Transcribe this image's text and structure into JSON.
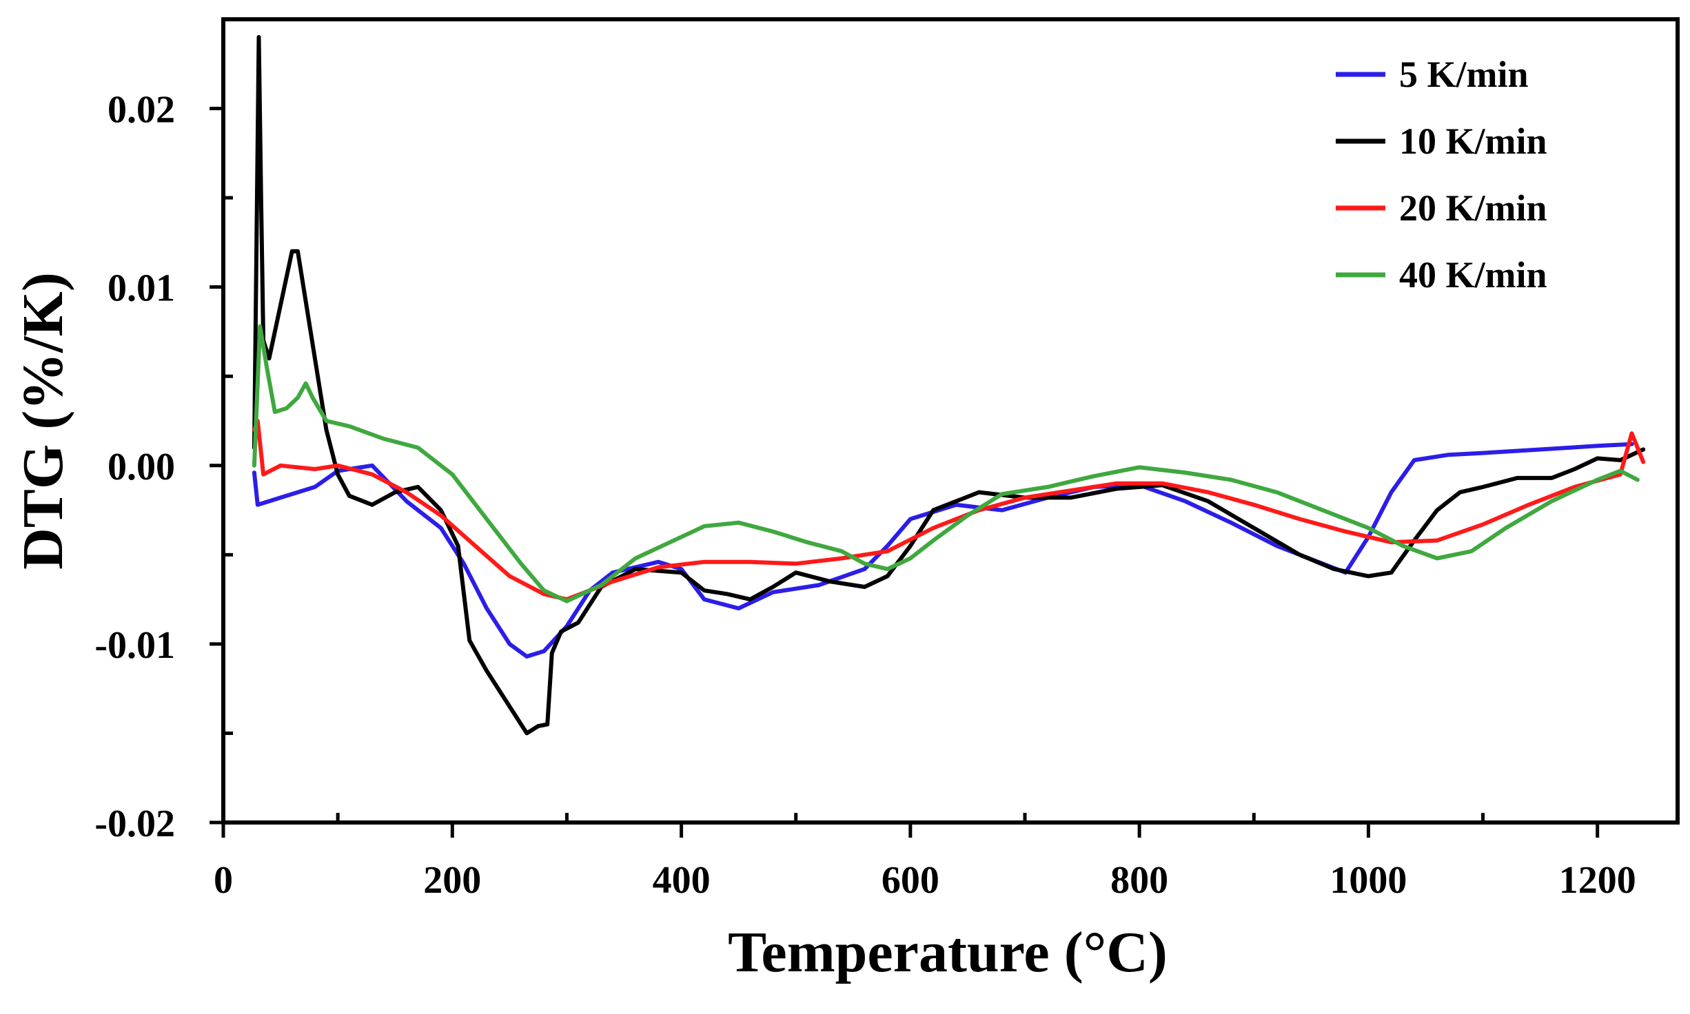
{
  "chart_data": {
    "type": "line",
    "title": "",
    "xlabel": "Temperature (°C)",
    "ylabel": "DTG (%/K)",
    "xlim": [
      0,
      1270
    ],
    "ylim": [
      -0.02,
      0.025
    ],
    "x_ticks": [
      0,
      200,
      400,
      600,
      800,
      1000,
      1200
    ],
    "x_tick_labels": [
      "0",
      "200",
      "400",
      "600",
      "800",
      "1000",
      "1200"
    ],
    "x_minor_ticks": [
      100,
      300,
      500,
      700,
      900,
      1100
    ],
    "y_ticks": [
      -0.02,
      -0.01,
      0.0,
      0.01,
      0.02
    ],
    "y_tick_labels": [
      "-0.02",
      "-0.01",
      "0.00",
      "0.01",
      "0.02"
    ],
    "y_minor_ticks": [
      -0.015,
      -0.005,
      0.005,
      0.015
    ],
    "grid": false,
    "legend_position": "top-right",
    "series": [
      {
        "name": " 5 K/min",
        "color": "#2b1ee8",
        "x": [
          27,
          30,
          50,
          80,
          100,
          130,
          160,
          190,
          210,
          230,
          250,
          265,
          280,
          300,
          320,
          340,
          380,
          400,
          420,
          450,
          480,
          520,
          560,
          580,
          600,
          640,
          680,
          720,
          760,
          800,
          840,
          880,
          920,
          960,
          980,
          1000,
          1020,
          1040,
          1070,
          1100,
          1150,
          1200,
          1230
        ],
        "y": [
          -0.0004,
          -0.0022,
          -0.0018,
          -0.0012,
          -0.0003,
          0.0,
          -0.002,
          -0.0035,
          -0.0055,
          -0.008,
          -0.01,
          -0.0107,
          -0.0104,
          -0.009,
          -0.007,
          -0.006,
          -0.0054,
          -0.0058,
          -0.0075,
          -0.008,
          -0.0071,
          -0.0067,
          -0.0058,
          -0.0045,
          -0.003,
          -0.0022,
          -0.0025,
          -0.0018,
          -0.0012,
          -0.0011,
          -0.002,
          -0.0032,
          -0.0045,
          -0.0055,
          -0.006,
          -0.004,
          -0.0015,
          0.0003,
          0.0006,
          0.0007,
          0.0009,
          0.0011,
          0.0012
        ]
      },
      {
        "name": "10 K/min",
        "color": "#000000",
        "x": [
          27,
          31,
          33,
          35,
          40,
          50,
          60,
          65,
          70,
          80,
          90,
          100,
          110,
          130,
          150,
          170,
          190,
          205,
          215,
          230,
          250,
          265,
          275,
          283,
          287,
          295,
          310,
          330,
          360,
          400,
          420,
          440,
          460,
          480,
          500,
          530,
          560,
          580,
          600,
          620,
          660,
          700,
          740,
          780,
          820,
          860,
          900,
          940,
          970,
          1000,
          1020,
          1040,
          1060,
          1080,
          1100,
          1130,
          1160,
          1180,
          1200,
          1220,
          1240
        ],
        "y": [
          0.001,
          0.024,
          0.015,
          0.007,
          0.006,
          0.009,
          0.012,
          0.012,
          0.01,
          0.006,
          0.002,
          -0.0005,
          -0.0017,
          -0.0022,
          -0.0015,
          -0.0012,
          -0.0025,
          -0.0045,
          -0.0098,
          -0.0115,
          -0.0135,
          -0.015,
          -0.0146,
          -0.0145,
          -0.0105,
          -0.0093,
          -0.0088,
          -0.0068,
          -0.0058,
          -0.006,
          -0.007,
          -0.0072,
          -0.0075,
          -0.0068,
          -0.006,
          -0.0065,
          -0.0068,
          -0.0062,
          -0.0045,
          -0.0025,
          -0.0015,
          -0.0018,
          -0.0018,
          -0.0013,
          -0.0011,
          -0.002,
          -0.0035,
          -0.005,
          -0.0058,
          -0.0062,
          -0.006,
          -0.0042,
          -0.0025,
          -0.0015,
          -0.0012,
          -0.0007,
          -0.0007,
          -0.0002,
          0.0004,
          0.0003,
          0.0009
        ]
      },
      {
        "name": "20 K/min",
        "color": "#ff1a1a",
        "x": [
          27,
          30,
          35,
          50,
          80,
          100,
          130,
          160,
          190,
          220,
          250,
          280,
          300,
          340,
          380,
          420,
          460,
          500,
          540,
          580,
          620,
          660,
          700,
          740,
          780,
          820,
          860,
          900,
          940,
          980,
          1020,
          1060,
          1100,
          1140,
          1180,
          1220,
          1230,
          1240
        ],
        "y": [
          0.002,
          0.0025,
          -0.0005,
          0.0,
          -0.0002,
          0.0,
          -0.0005,
          -0.0015,
          -0.0028,
          -0.0045,
          -0.0062,
          -0.0072,
          -0.0075,
          -0.0065,
          -0.0057,
          -0.0054,
          -0.0054,
          -0.0055,
          -0.0052,
          -0.0048,
          -0.0035,
          -0.0025,
          -0.0018,
          -0.0014,
          -0.001,
          -0.001,
          -0.0015,
          -0.0022,
          -0.003,
          -0.0037,
          -0.0043,
          -0.0042,
          -0.0033,
          -0.0022,
          -0.0012,
          -0.0005,
          0.0018,
          0.0002
        ]
      },
      {
        "name": "40 K/min",
        "color": "#3fa83f",
        "x": [
          27,
          32,
          38,
          45,
          55,
          65,
          72,
          78,
          90,
          110,
          140,
          170,
          200,
          230,
          260,
          280,
          300,
          330,
          360,
          390,
          420,
          450,
          480,
          510,
          540,
          560,
          580,
          600,
          620,
          650,
          680,
          720,
          760,
          800,
          840,
          880,
          920,
          960,
          1000,
          1030,
          1060,
          1090,
          1120,
          1160,
          1200,
          1220,
          1235
        ],
        "y": [
          0.0,
          0.0078,
          0.0055,
          0.003,
          0.0032,
          0.0038,
          0.0046,
          0.0038,
          0.0025,
          0.0022,
          0.0015,
          0.001,
          -0.0005,
          -0.003,
          -0.0055,
          -0.007,
          -0.0076,
          -0.0067,
          -0.0052,
          -0.0043,
          -0.0034,
          -0.0032,
          -0.0037,
          -0.0043,
          -0.0048,
          -0.0055,
          -0.0058,
          -0.0052,
          -0.0042,
          -0.0028,
          -0.0016,
          -0.0012,
          -0.0006,
          -0.0001,
          -0.0004,
          -0.0008,
          -0.0015,
          -0.0025,
          -0.0035,
          -0.0045,
          -0.0052,
          -0.0048,
          -0.0035,
          -0.002,
          -0.0008,
          -0.0003,
          -0.0008
        ]
      }
    ]
  }
}
